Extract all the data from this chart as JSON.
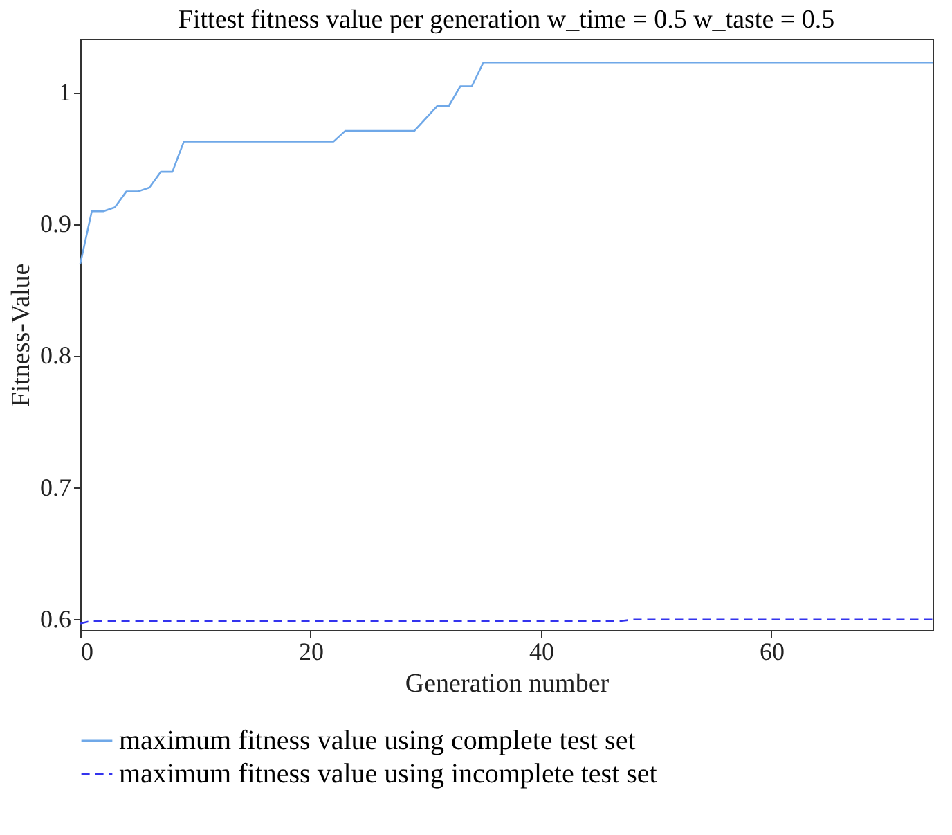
{
  "chart_data": {
    "type": "line",
    "title": "Fittest fitness value per generation w_time = 0.5 w_taste = 0.5",
    "xlabel": "Generation number",
    "ylabel": "Fitness-Value",
    "xlim": [
      0,
      74
    ],
    "ylim": [
      0.592,
      1.041
    ],
    "xticks": [
      0,
      20,
      40,
      60
    ],
    "yticks": [
      0.6,
      0.7,
      0.8,
      0.9,
      1
    ],
    "grid": false,
    "legend": "bottom",
    "marker": "none",
    "series": [
      {
        "name": "maximum fitness value using complete test set",
        "color": "#6fa8e8",
        "line_style": "solid",
        "x": [
          0,
          1,
          2,
          3,
          4,
          5,
          6,
          7,
          8,
          9,
          22,
          23,
          29,
          31,
          32,
          33,
          34,
          35,
          74
        ],
        "values": [
          0.87,
          0.91,
          0.91,
          0.913,
          0.925,
          0.925,
          0.928,
          0.94,
          0.94,
          0.963,
          0.963,
          0.971,
          0.971,
          0.99,
          0.99,
          1.005,
          1.005,
          1.023,
          1.023
        ]
      },
      {
        "name": "maximum fitness value using incomplete test set",
        "color": "#3333ee",
        "line_style": "dashed",
        "x": [
          0,
          1,
          47,
          48,
          74
        ],
        "values": [
          0.597,
          0.599,
          0.599,
          0.6,
          0.6
        ]
      }
    ]
  }
}
